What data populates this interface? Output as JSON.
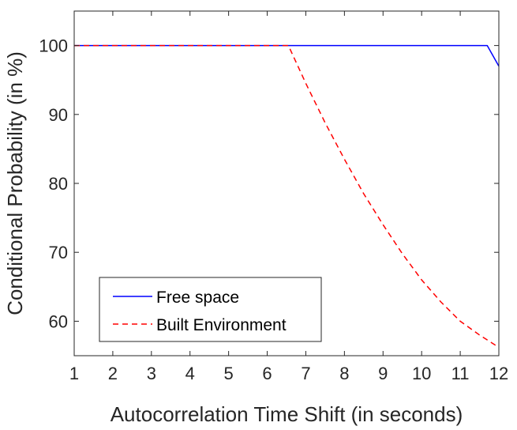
{
  "chart_data": {
    "type": "line",
    "title": "",
    "xlabel": "Autocorrelation Time Shift (in seconds)",
    "ylabel": "Conditional Probability (in %)",
    "xlim": [
      1,
      12
    ],
    "ylim": [
      55,
      105
    ],
    "xticks": [
      "1",
      "2",
      "3",
      "4",
      "5",
      "6",
      "7",
      "8",
      "9",
      "10",
      "11",
      "12"
    ],
    "yticks": [
      "60",
      "70",
      "80",
      "90",
      "100"
    ],
    "grid": false,
    "legend_position": "bottom-left",
    "series": [
      {
        "name": "Free space",
        "color": "#0000ff",
        "style": "solid",
        "x": [
          1,
          2,
          3,
          4,
          5,
          6,
          7,
          8,
          9,
          10,
          11,
          11.7,
          12
        ],
        "y": [
          100,
          100,
          100,
          100,
          100,
          100,
          100,
          100,
          100,
          100,
          100,
          100,
          97
        ]
      },
      {
        "name": "Built Environment",
        "color": "#ff0000",
        "style": "dashed",
        "x": [
          1,
          2,
          3,
          4,
          5,
          6,
          6.55,
          7,
          7.5,
          8,
          8.5,
          9,
          9.5,
          10,
          10.5,
          11,
          11.5,
          12
        ],
        "y": [
          100,
          100,
          100,
          100,
          100,
          100,
          100,
          94.5,
          88.8,
          83.5,
          78.5,
          74,
          69.8,
          66,
          62.8,
          60,
          58,
          56.2
        ]
      }
    ]
  }
}
